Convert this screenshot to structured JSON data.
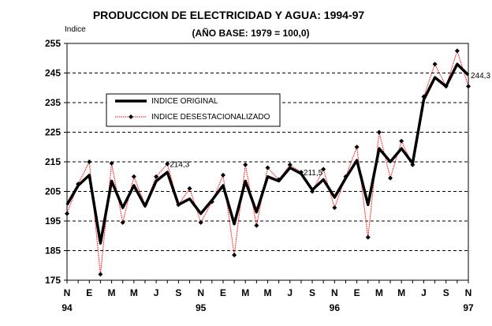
{
  "chart_data": {
    "type": "line",
    "title": "PRODUCCION DE ELECTRICIDAD Y AGUA: 1994-97",
    "subtitle": "(AÑO BASE: 1979 = 100,0)",
    "ylabel": "Indice",
    "xlabel": "",
    "ylim": [
      175,
      255
    ],
    "yticks": [
      175,
      185,
      195,
      205,
      215,
      225,
      235,
      245,
      255
    ],
    "grid": "horizontal-dashed",
    "legend_position": "center-left",
    "x": [
      "N 94",
      "D 94",
      "E 95",
      "F 95",
      "M 95",
      "A 95",
      "M 95",
      "J 95",
      "J 95",
      "A 95",
      "S 95",
      "O 95",
      "N 95",
      "D 95",
      "E 96",
      "F 96",
      "M 96",
      "A 96",
      "M 96",
      "J 96",
      "J 96",
      "A 96",
      "S 96",
      "O 96",
      "N 96",
      "D 96",
      "E 97",
      "F 97",
      "M 97",
      "A 97",
      "M 97",
      "J 97",
      "J 97",
      "A 97",
      "S 97",
      "O 97",
      "N 97"
    ],
    "x_tick_labels": [
      {
        "index": 0,
        "label": "N",
        "year": "94"
      },
      {
        "index": 2,
        "label": "E"
      },
      {
        "index": 4,
        "label": "M"
      },
      {
        "index": 6,
        "label": "M"
      },
      {
        "index": 8,
        "label": "J"
      },
      {
        "index": 10,
        "label": "S"
      },
      {
        "index": 12,
        "label": "N",
        "year": "95"
      },
      {
        "index": 14,
        "label": "E"
      },
      {
        "index": 16,
        "label": "M"
      },
      {
        "index": 18,
        "label": "M"
      },
      {
        "index": 20,
        "label": "J"
      },
      {
        "index": 22,
        "label": "S"
      },
      {
        "index": 24,
        "label": "N",
        "year": "96"
      },
      {
        "index": 26,
        "label": "E"
      },
      {
        "index": 28,
        "label": "M"
      },
      {
        "index": 30,
        "label": "M"
      },
      {
        "index": 32,
        "label": "J"
      },
      {
        "index": 34,
        "label": "S"
      },
      {
        "index": 36,
        "label": "N",
        "year": "97"
      }
    ],
    "series": [
      {
        "name": "INDICE ORIGINAL",
        "color": "#000000",
        "values": [
          200.5,
          207,
          210.5,
          187.5,
          208.5,
          199.5,
          207,
          200,
          208.5,
          211.5,
          200.5,
          202.5,
          197.5,
          202,
          207,
          194,
          208.5,
          198,
          210,
          208.5,
          213,
          211,
          205.5,
          209,
          203,
          209.5,
          215.5,
          200.5,
          219.5,
          215,
          219.5,
          214.5,
          236,
          243.5,
          240.5,
          248,
          244.3
        ]
      },
      {
        "name": "INDICE DESESTACIONALIZADO",
        "color": "#ff0000",
        "marker_color": "#000000",
        "values": [
          197.5,
          207.5,
          215,
          177,
          214.5,
          194.5,
          210,
          200.5,
          210,
          214.3,
          200.5,
          206,
          194.5,
          201.5,
          210.5,
          183.5,
          214,
          193.5,
          213,
          209,
          214,
          211.5,
          205,
          212.5,
          199.5,
          210,
          220,
          189.5,
          225,
          209.5,
          222,
          214,
          237,
          248,
          240.5,
          252.5,
          240.5
        ]
      }
    ],
    "annotations": [
      {
        "text": "214,3",
        "index": 9,
        "value": 214.3
      },
      {
        "text": "211,5",
        "index": 21,
        "value": 211.5
      },
      {
        "text": "244,3",
        "index": 36,
        "value": 244.3
      }
    ]
  }
}
